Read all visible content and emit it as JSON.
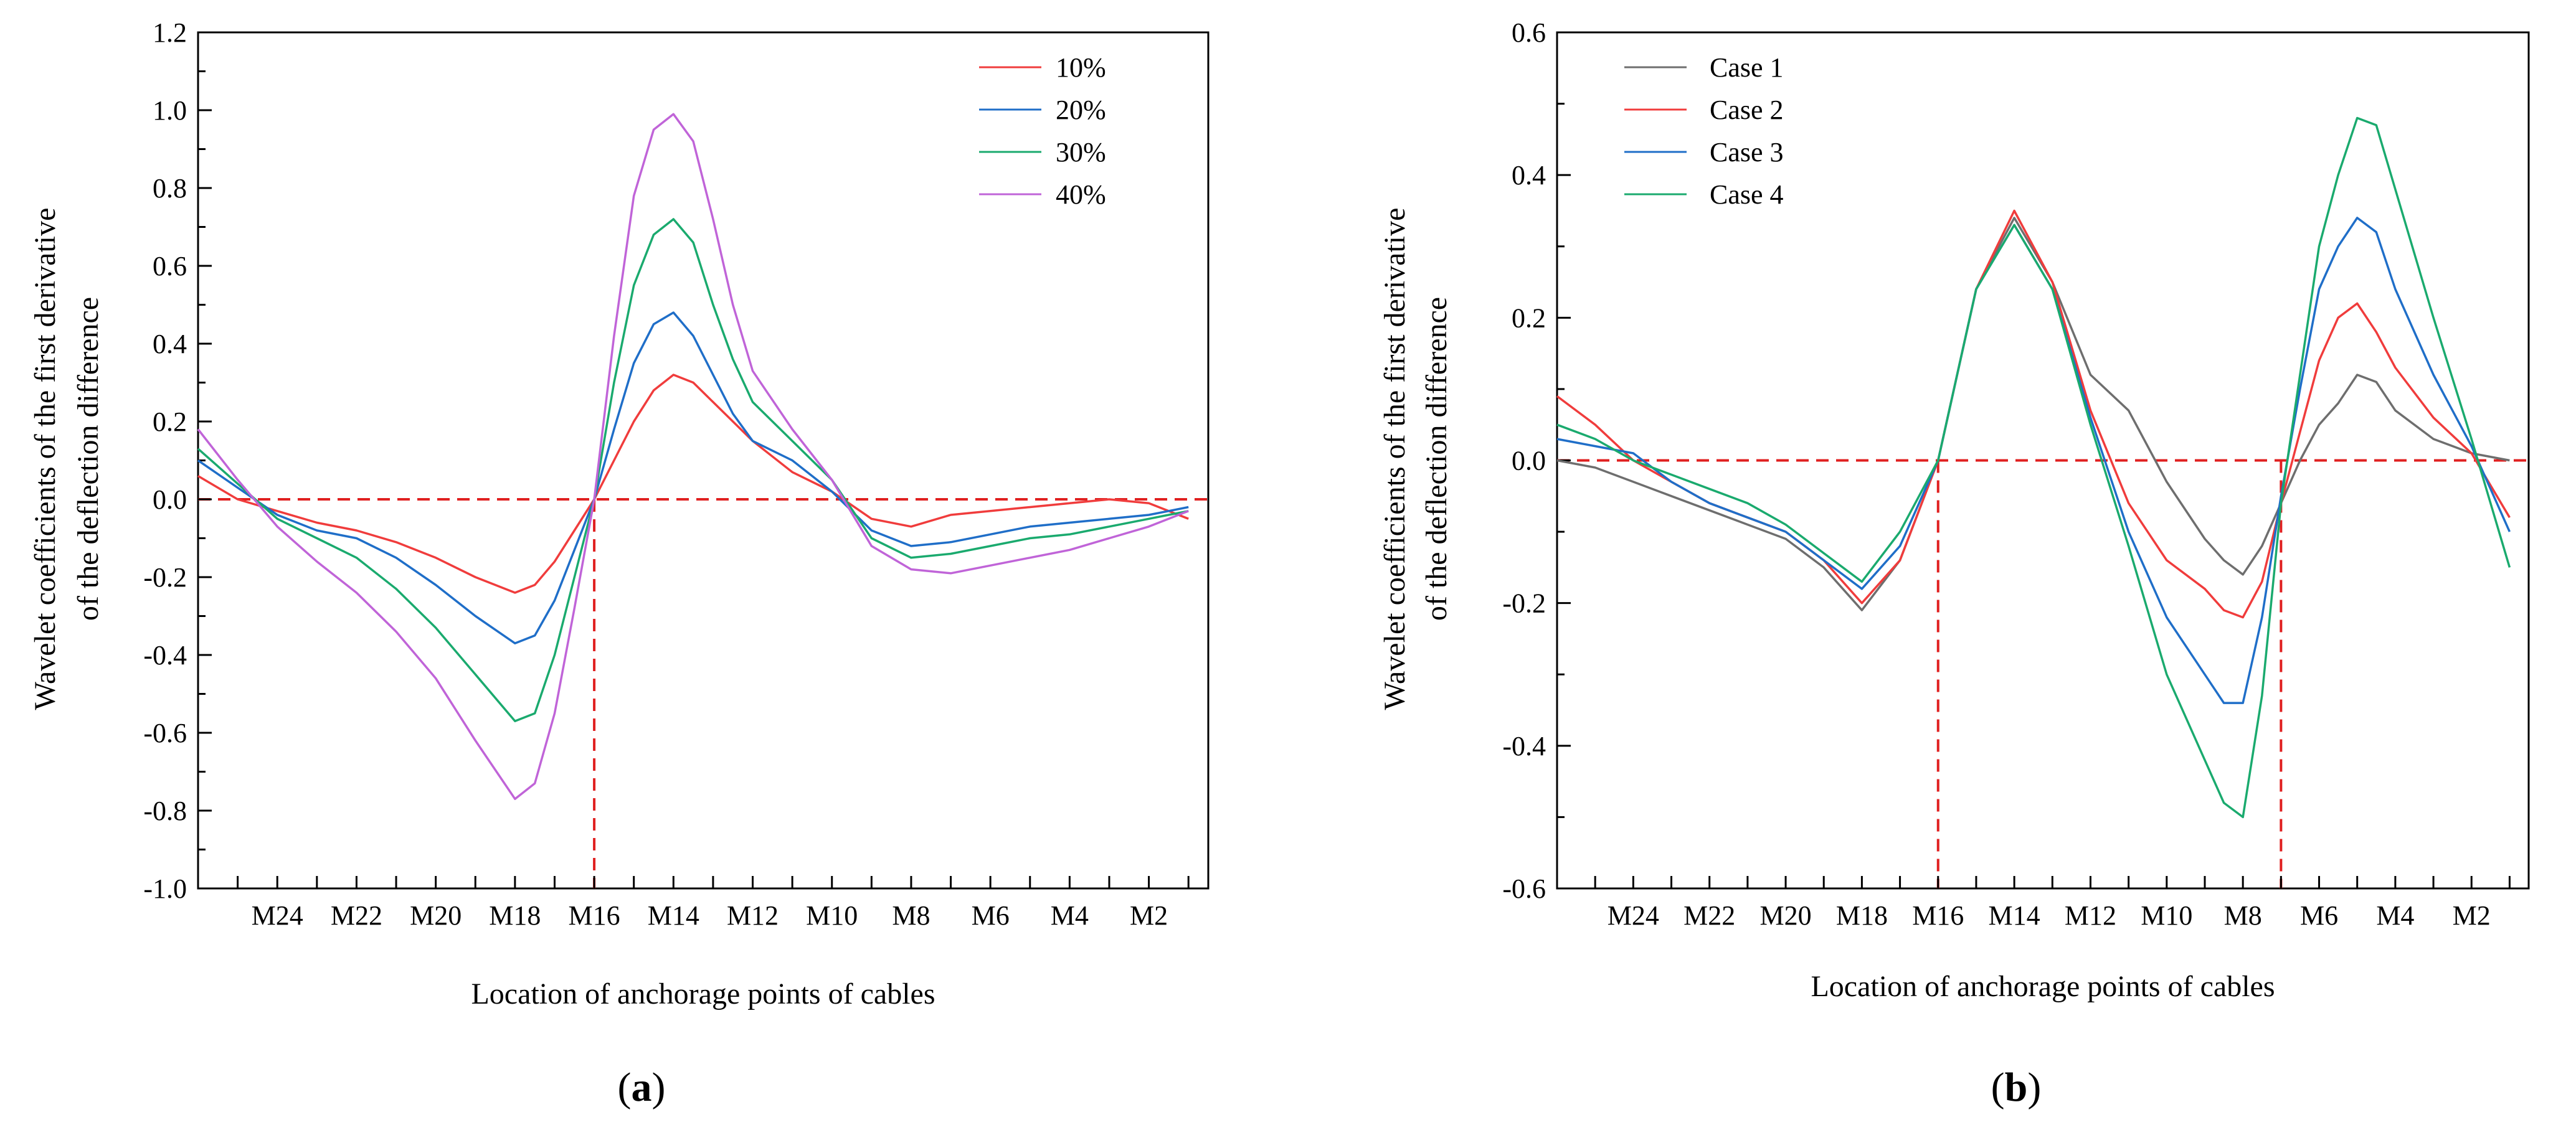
{
  "chart_data": [
    {
      "type": "line",
      "caption_letter": "a",
      "xlabel": "Location of anchorage points of cables",
      "ylabel_line1": "Wavelet coefficients of the first  derivative",
      "ylabel_line2": "of the deflection difference",
      "ylim": [
        -1.0,
        1.2
      ],
      "yticks": [
        "-1.0",
        "-0.8",
        "-0.6",
        "-0.4",
        "-0.2",
        "0.0",
        "0.2",
        "0.4",
        "0.6",
        "0.8",
        "1.0",
        "1.2"
      ],
      "categories": [
        "M24",
        "M22",
        "M20",
        "M18",
        "M16",
        "M14",
        "M12",
        "M10",
        "M8",
        "M6",
        "M4",
        "M2"
      ],
      "xlim": [
        26,
        0.5
      ],
      "reference_y": 0.0,
      "reference_x": [
        16
      ],
      "series": [
        {
          "name": "10%",
          "color": "#f03c3c",
          "x": [
            26,
            25,
            24,
            23,
            22,
            21,
            20,
            19,
            18,
            17.5,
            17,
            16.5,
            16,
            15.5,
            15,
            14.5,
            14,
            13.5,
            13,
            12.5,
            12,
            11,
            10,
            9,
            8,
            7,
            6,
            5,
            4,
            3,
            2,
            1.5,
            1
          ],
          "y": [
            0.06,
            0.0,
            -0.03,
            -0.06,
            -0.08,
            -0.11,
            -0.15,
            -0.2,
            -0.24,
            -0.22,
            -0.16,
            -0.08,
            0.0,
            0.1,
            0.2,
            0.28,
            0.32,
            0.3,
            0.25,
            0.2,
            0.15,
            0.07,
            0.02,
            -0.05,
            -0.07,
            -0.04,
            -0.03,
            -0.02,
            -0.01,
            0.0,
            -0.01,
            -0.03,
            -0.05
          ]
        },
        {
          "name": "20%",
          "color": "#1f6ec8",
          "x": [
            26,
            25,
            24,
            23,
            22,
            21,
            20,
            19,
            18,
            17.5,
            17,
            16.5,
            16,
            15.5,
            15,
            14.5,
            14,
            13.5,
            13,
            12.5,
            12,
            11,
            10,
            9,
            8,
            7,
            6,
            5,
            4,
            3,
            2,
            1.5,
            1
          ],
          "y": [
            0.1,
            0.03,
            -0.04,
            -0.08,
            -0.1,
            -0.15,
            -0.22,
            -0.3,
            -0.37,
            -0.35,
            -0.26,
            -0.13,
            0.0,
            0.18,
            0.35,
            0.45,
            0.48,
            0.42,
            0.32,
            0.22,
            0.15,
            0.1,
            0.02,
            -0.08,
            -0.12,
            -0.11,
            -0.09,
            -0.07,
            -0.06,
            -0.05,
            -0.04,
            -0.03,
            -0.02
          ]
        },
        {
          "name": "30%",
          "color": "#1aaa6e",
          "x": [
            26,
            25,
            24,
            23,
            22,
            21,
            20,
            19,
            18,
            17.5,
            17,
            16.5,
            16,
            15.5,
            15,
            14.5,
            14,
            13.5,
            13,
            12.5,
            12,
            11,
            10,
            9,
            8,
            7,
            6,
            5,
            4,
            3,
            2,
            1.5,
            1
          ],
          "y": [
            0.13,
            0.04,
            -0.05,
            -0.1,
            -0.15,
            -0.23,
            -0.33,
            -0.45,
            -0.57,
            -0.55,
            -0.4,
            -0.2,
            0.0,
            0.3,
            0.55,
            0.68,
            0.72,
            0.66,
            0.5,
            0.36,
            0.25,
            0.15,
            0.05,
            -0.1,
            -0.15,
            -0.14,
            -0.12,
            -0.1,
            -0.09,
            -0.07,
            -0.05,
            -0.04,
            -0.03
          ]
        },
        {
          "name": "40%",
          "color": "#c064d8",
          "x": [
            26,
            25,
            24,
            23,
            22,
            21,
            20,
            19,
            18,
            17.5,
            17,
            16.5,
            16,
            15.5,
            15,
            14.5,
            14,
            13.5,
            13,
            12.5,
            12,
            11,
            10,
            9,
            8,
            7,
            6,
            5,
            4,
            3,
            2,
            1.5,
            1
          ],
          "y": [
            0.18,
            0.05,
            -0.07,
            -0.16,
            -0.24,
            -0.34,
            -0.46,
            -0.62,
            -0.77,
            -0.73,
            -0.55,
            -0.28,
            0.0,
            0.42,
            0.78,
            0.95,
            0.99,
            0.92,
            0.72,
            0.5,
            0.33,
            0.18,
            0.05,
            -0.12,
            -0.18,
            -0.19,
            -0.17,
            -0.15,
            -0.13,
            -0.1,
            -0.07,
            -0.05,
            -0.03
          ]
        }
      ]
    },
    {
      "type": "line",
      "caption_letter": "b",
      "xlabel": "Location of anchorage points of cables",
      "ylabel_line1": "Wavelet coefficients of the first  derivative",
      "ylabel_line2": "of the deflection difference",
      "ylim": [
        -0.6,
        0.6
      ],
      "yticks": [
        "-0.6",
        "-0.4",
        "-0.2",
        "0.0",
        "0.2",
        "0.4",
        "0.6"
      ],
      "categories": [
        "M24",
        "M22",
        "M20",
        "M18",
        "M16",
        "M14",
        "M12",
        "M10",
        "M8",
        "M6",
        "M4",
        "M2"
      ],
      "xlim": [
        26,
        0.5
      ],
      "reference_y": 0.0,
      "reference_x": [
        16,
        7
      ],
      "series": [
        {
          "name": "Case 1",
          "color": "#6e6e6e",
          "x": [
            26,
            25,
            24,
            23,
            22,
            21,
            20,
            19,
            18,
            17,
            16,
            15,
            14,
            13,
            12,
            11,
            10,
            9,
            8.5,
            8,
            7.5,
            7,
            6.5,
            6,
            5.5,
            5,
            4.5,
            4,
            3,
            2,
            1
          ],
          "y": [
            0.0,
            -0.01,
            -0.03,
            -0.05,
            -0.07,
            -0.09,
            -0.11,
            -0.15,
            -0.21,
            -0.14,
            0.0,
            0.24,
            0.34,
            0.25,
            0.12,
            0.07,
            -0.03,
            -0.11,
            -0.14,
            -0.16,
            -0.12,
            -0.06,
            0.0,
            0.05,
            0.08,
            0.12,
            0.11,
            0.07,
            0.03,
            0.01,
            0.0
          ]
        },
        {
          "name": "Case 2",
          "color": "#f03c3c",
          "x": [
            26,
            25,
            24,
            23,
            22,
            21,
            20,
            19,
            18,
            17,
            16,
            15,
            14,
            13,
            12,
            11,
            10,
            9,
            8.5,
            8,
            7.5,
            7,
            6.5,
            6,
            5.5,
            5,
            4.5,
            4,
            3,
            2,
            1
          ],
          "y": [
            0.09,
            0.05,
            0.0,
            -0.03,
            -0.06,
            -0.08,
            -0.1,
            -0.14,
            -0.2,
            -0.14,
            0.0,
            0.24,
            0.35,
            0.25,
            0.07,
            -0.06,
            -0.14,
            -0.18,
            -0.21,
            -0.22,
            -0.17,
            -0.06,
            0.04,
            0.14,
            0.2,
            0.22,
            0.18,
            0.13,
            0.06,
            0.01,
            -0.08
          ]
        },
        {
          "name": "Case 3",
          "color": "#1f6ec8",
          "x": [
            26,
            25,
            24,
            23,
            22,
            21,
            20,
            19,
            18,
            17,
            16,
            15,
            14,
            13,
            12,
            11,
            10,
            9,
            8.5,
            8,
            7.5,
            7,
            6.5,
            6,
            5.5,
            5,
            4.5,
            4,
            3,
            2,
            1
          ],
          "y": [
            0.03,
            0.02,
            0.01,
            -0.03,
            -0.06,
            -0.08,
            -0.1,
            -0.14,
            -0.18,
            -0.12,
            0.0,
            0.24,
            0.33,
            0.24,
            0.06,
            -0.1,
            -0.22,
            -0.3,
            -0.34,
            -0.34,
            -0.22,
            -0.05,
            0.1,
            0.24,
            0.3,
            0.34,
            0.32,
            0.24,
            0.12,
            0.02,
            -0.1
          ]
        },
        {
          "name": "Case 4",
          "color": "#1aaa6e",
          "x": [
            26,
            25,
            24,
            23,
            22,
            21,
            20,
            19,
            18,
            17,
            16,
            15,
            14,
            13,
            12,
            11,
            10,
            9,
            8.5,
            8,
            7.5,
            7,
            6.5,
            6,
            5.5,
            5,
            4.5,
            4,
            3,
            2,
            1
          ],
          "y": [
            0.05,
            0.03,
            0.0,
            -0.02,
            -0.04,
            -0.06,
            -0.09,
            -0.13,
            -0.17,
            -0.1,
            0.0,
            0.24,
            0.33,
            0.24,
            0.05,
            -0.12,
            -0.3,
            -0.42,
            -0.48,
            -0.5,
            -0.33,
            -0.06,
            0.12,
            0.3,
            0.4,
            0.48,
            0.47,
            0.38,
            0.2,
            0.03,
            -0.15
          ]
        }
      ]
    }
  ]
}
